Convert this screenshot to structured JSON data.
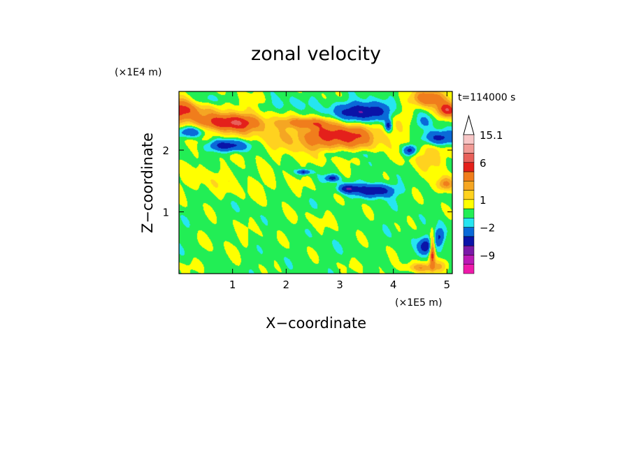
{
  "chart_data": {
    "type": "heatmap",
    "title": "zonal velocity",
    "xlabel": "X−coordinate",
    "ylabel": "Z−coordinate",
    "x_multiplier": "(×1E5 m)",
    "y_multiplier": "(×1E4 m)",
    "time_label": "t=114000 s",
    "xlim": [
      0,
      5.1
    ],
    "ylim": [
      0,
      2.95
    ],
    "x_ticks": [
      {
        "value": 1,
        "label": "1"
      },
      {
        "value": 2,
        "label": "2"
      },
      {
        "value": 3,
        "label": "3"
      },
      {
        "value": 4,
        "label": "4"
      },
      {
        "value": 5,
        "label": "5"
      }
    ],
    "y_ticks": [
      {
        "value": 1,
        "label": "1"
      },
      {
        "value": 2,
        "label": "2"
      }
    ],
    "colorbar": {
      "levels_top_to_bottom": [
        {
          "color": "#f7c6c6",
          "min": 12.1,
          "max": 15.1
        },
        {
          "color": "#f19a95",
          "min": 9.1,
          "max": 12.1
        },
        {
          "color": "#e8605a",
          "min": 6.0,
          "max": 9.1
        },
        {
          "color": "#e4201b",
          "min": 4.5,
          "max": 6.0
        },
        {
          "color": "#f07d1c",
          "min": 3.0,
          "max": 4.5
        },
        {
          "color": "#f5a623",
          "min": 2.0,
          "max": 3.0
        },
        {
          "color": "#ffd21f",
          "min": 1.0,
          "max": 2.0
        },
        {
          "color": "#ffff00",
          "min": 0.0,
          "max": 1.0
        },
        {
          "color": "#22ee55",
          "min": -1.0,
          "max": 0.0
        },
        {
          "color": "#26e5f0",
          "min": -2.0,
          "max": -1.0
        },
        {
          "color": "#0a6ad8",
          "min": -4.0,
          "max": -2.0
        },
        {
          "color": "#0a14a8",
          "min": -6.0,
          "max": -4.0
        },
        {
          "color": "#7a1aa8",
          "min": -9.0,
          "max": -6.0
        },
        {
          "color": "#bb1ab5",
          "min": -12.0,
          "max": -9.0
        },
        {
          "color": "#ee1aaa",
          "min": -15.0,
          "max": -12.0
        }
      ],
      "labels": [
        {
          "value": 15.1,
          "label": "15.1"
        },
        {
          "value": 6,
          "label": "6"
        },
        {
          "value": 1,
          "label": "1"
        },
        {
          "value": -2,
          "label": "−2"
        },
        {
          "value": -9,
          "label": "−9"
        }
      ]
    },
    "field_features": [
      {
        "x": 0.0,
        "z": 2.65,
        "rx": 0.35,
        "rz": 0.18,
        "value": 5.0
      },
      {
        "x": 0.22,
        "z": 2.3,
        "rx": 0.28,
        "rz": 0.1,
        "value": -4.5
      },
      {
        "x": 0.95,
        "z": 2.45,
        "rx": 0.55,
        "rz": 0.13,
        "value": 4.5
      },
      {
        "x": 0.9,
        "z": 2.08,
        "rx": 0.38,
        "rz": 0.1,
        "value": -5.5
      },
      {
        "x": 0.85,
        "z": 2.45,
        "rx": 1.3,
        "rz": 0.38,
        "value": 2.0
      },
      {
        "x": 2.35,
        "z": 2.45,
        "rx": 0.45,
        "rz": 0.08,
        "value": 3.0
      },
      {
        "x": 1.95,
        "z": 2.72,
        "rx": 0.45,
        "rz": 0.15,
        "value": -1.5
      },
      {
        "x": 0.55,
        "z": 2.82,
        "rx": 0.3,
        "rz": 0.1,
        "value": -1.5
      },
      {
        "x": 3.45,
        "z": 2.62,
        "rx": 0.55,
        "rz": 0.15,
        "value": -6.0
      },
      {
        "x": 3.05,
        "z": 2.25,
        "rx": 0.75,
        "rz": 0.2,
        "value": 4.0
      },
      {
        "x": 2.7,
        "z": 2.15,
        "rx": 1.0,
        "rz": 0.3,
        "value": 2.0
      },
      {
        "x": 3.1,
        "z": 1.95,
        "rx": 0.55,
        "rz": 0.07,
        "value": -1.5
      },
      {
        "x": 3.65,
        "z": 1.35,
        "rx": 0.35,
        "rz": 0.1,
        "value": -5.5
      },
      {
        "x": 3.15,
        "z": 1.38,
        "rx": 0.18,
        "rz": 0.07,
        "value": -5.0
      },
      {
        "x": 2.85,
        "z": 1.55,
        "rx": 0.12,
        "rz": 0.05,
        "value": -4.5
      },
      {
        "x": 2.32,
        "z": 1.65,
        "rx": 0.12,
        "rz": 0.04,
        "value": -4.5
      },
      {
        "x": 3.9,
        "z": 2.4,
        "rx": 0.06,
        "rz": 0.09,
        "value": -5.0
      },
      {
        "x": 4.1,
        "z": 2.6,
        "rx": 0.25,
        "rz": 0.18,
        "value": 2.0
      },
      {
        "x": 4.3,
        "z": 2.0,
        "rx": 0.12,
        "rz": 0.08,
        "value": -5.0
      },
      {
        "x": 4.68,
        "z": 2.85,
        "rx": 0.32,
        "rz": 0.15,
        "value": 5.0
      },
      {
        "x": 5.0,
        "z": 2.65,
        "rx": 0.2,
        "rz": 0.12,
        "value": 5.5
      },
      {
        "x": 4.85,
        "z": 2.2,
        "rx": 0.3,
        "rz": 0.12,
        "value": -5.5
      },
      {
        "x": 4.55,
        "z": 2.45,
        "rx": 0.18,
        "rz": 0.12,
        "value": -1.5
      },
      {
        "x": 4.7,
        "z": 1.95,
        "rx": 0.45,
        "rz": 0.3,
        "value": 2.0
      },
      {
        "x": 4.95,
        "z": 1.45,
        "rx": 0.18,
        "rz": 0.12,
        "value": 4.0
      },
      {
        "x": 0.6,
        "z": 1.5,
        "rx": 0.9,
        "rz": 0.25,
        "value": 1.0
      },
      {
        "x": 1.8,
        "z": 1.4,
        "rx": 0.6,
        "rz": 0.22,
        "value": 0.5
      },
      {
        "x": 2.6,
        "z": 0.9,
        "rx": 0.55,
        "rz": 0.15,
        "value": 0.5
      },
      {
        "x": 1.0,
        "z": 0.55,
        "rx": 0.6,
        "rz": 0.25,
        "value": 0.5
      },
      {
        "x": 0.45,
        "z": 0.15,
        "rx": 0.4,
        "rz": 0.1,
        "value": 0.5
      },
      {
        "x": 3.6,
        "z": 0.15,
        "rx": 0.5,
        "rz": 0.1,
        "value": 0.5
      },
      {
        "x": 4.6,
        "z": 0.45,
        "rx": 0.12,
        "rz": 0.12,
        "value": -5.5
      },
      {
        "x": 4.72,
        "z": 0.38,
        "rx": 0.05,
        "rz": 0.25,
        "value": 6.0
      },
      {
        "x": 4.85,
        "z": 0.6,
        "rx": 0.1,
        "rz": 0.15,
        "value": -4.5
      },
      {
        "x": 4.5,
        "z": 0.1,
        "rx": 0.3,
        "rz": 0.08,
        "value": 3.0
      },
      {
        "x": 4.9,
        "z": 0.15,
        "rx": 0.15,
        "rz": 0.12,
        "value": 2.0
      }
    ]
  }
}
